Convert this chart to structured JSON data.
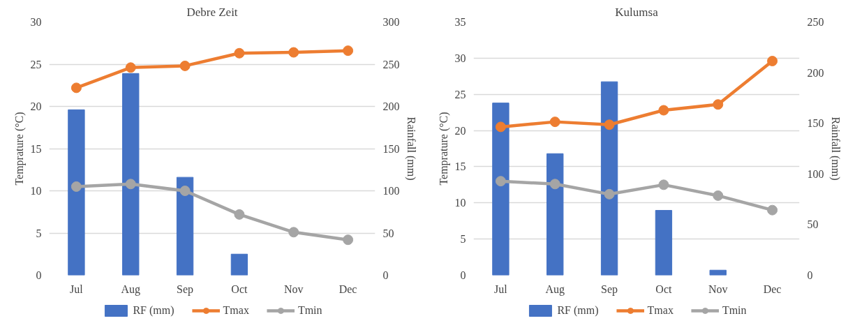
{
  "chart_data": [
    {
      "type": "bar",
      "title": "Debre Zeit",
      "ylabel": "Temprature (°C)",
      "y2label": "Rainfall (mm)",
      "categories": [
        "Jul",
        "Aug",
        "Sep",
        "Oct",
        "Nov",
        "Dec"
      ],
      "ylim": [
        0,
        30
      ],
      "yticks": [
        0,
        5,
        10,
        15,
        20,
        25,
        30
      ],
      "y2lim": [
        0,
        300
      ],
      "y2ticks": [
        0,
        50,
        100,
        150,
        200,
        250,
        300
      ],
      "grid": "y",
      "legend": "bottom",
      "series": [
        {
          "name": "RF (mm)",
          "axis": "y2",
          "color": "#4472c4",
          "values": [
            196,
            239,
            116,
            25,
            null,
            null
          ]
        },
        {
          "name": "Tmax",
          "type": "line",
          "color": "#ed7d31",
          "marker": "circle",
          "values": [
            22.2,
            24.6,
            24.8,
            26.3,
            26.4,
            26.6
          ]
        },
        {
          "name": "Tmin",
          "type": "line",
          "color": "#a5a5a5",
          "marker": "circle",
          "values": [
            10.5,
            10.8,
            10.0,
            7.2,
            5.1,
            4.2
          ]
        }
      ]
    },
    {
      "type": "bar",
      "title": "Kulumsa",
      "ylabel": "Temprature (°C)",
      "y2label": "Rainfall (mm)",
      "categories": [
        "Jul",
        "Aug",
        "Sep",
        "Oct",
        "Nov",
        "Dec"
      ],
      "ylim": [
        0,
        35
      ],
      "yticks": [
        0,
        5,
        10,
        15,
        20,
        25,
        30,
        35
      ],
      "y2lim": [
        0,
        250
      ],
      "y2ticks": [
        0,
        50,
        100,
        150,
        200,
        250
      ],
      "grid": "y",
      "legend": "bottom",
      "series": [
        {
          "name": "RF (mm)",
          "axis": "y2",
          "color": "#4472c4",
          "values": [
            170,
            120,
            191,
            64,
            5,
            null
          ]
        },
        {
          "name": "Tmax",
          "type": "line",
          "color": "#ed7d31",
          "marker": "circle",
          "values": [
            20.5,
            21.2,
            20.8,
            22.8,
            23.6,
            29.6
          ]
        },
        {
          "name": "Tmin",
          "type": "line",
          "color": "#a5a5a5",
          "marker": "circle",
          "values": [
            13.0,
            12.6,
            11.2,
            12.5,
            11.0,
            9.0
          ]
        }
      ]
    }
  ]
}
